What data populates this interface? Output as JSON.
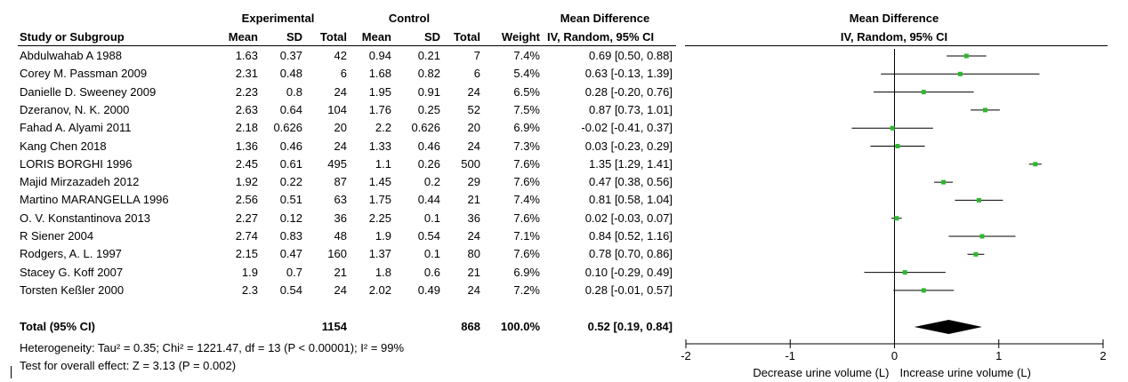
{
  "headers": {
    "experimental": "Experimental",
    "control": "Control",
    "mean_difference": "Mean Difference",
    "study_or_subgroup": "Study or Subgroup",
    "mean": "Mean",
    "sd": "SD",
    "total": "Total",
    "weight": "Weight",
    "ci_method": "IV, Random, 95% CI",
    "plot_title": "Mean Difference",
    "plot_method": "IV, Random, 95% CI"
  },
  "studies": [
    {
      "name": "Abdulwahab A  1988",
      "e_mean": "1.63",
      "e_sd": "0.37",
      "e_total": "42",
      "c_mean": "0.94",
      "c_sd": "0.21",
      "c_total": "7",
      "weight": "7.4%",
      "ci_text": "0.69 [0.50, 0.88]"
    },
    {
      "name": "Corey M. Passman  2009",
      "e_mean": "2.31",
      "e_sd": "0.48",
      "e_total": "6",
      "c_mean": "1.68",
      "c_sd": "0.82",
      "c_total": "6",
      "weight": "5.4%",
      "ci_text": "0.63 [-0.13, 1.39]"
    },
    {
      "name": "Danielle D. Sweeney  2009",
      "e_mean": "2.23",
      "e_sd": "0.8",
      "e_total": "24",
      "c_mean": "1.95",
      "c_sd": "0.91",
      "c_total": "24",
      "weight": "6.5%",
      "ci_text": "0.28 [-0.20, 0.76]"
    },
    {
      "name": "Dzeranov, N. K.  2000",
      "e_mean": "2.63",
      "e_sd": "0.64",
      "e_total": "104",
      "c_mean": "1.76",
      "c_sd": "0.25",
      "c_total": "52",
      "weight": "7.5%",
      "ci_text": "0.87 [0.73, 1.01]"
    },
    {
      "name": "Fahad A. Alyami  2011",
      "e_mean": "2.18",
      "e_sd": "0.626",
      "e_total": "20",
      "c_mean": "2.2",
      "c_sd": "0.626",
      "c_total": "20",
      "weight": "6.9%",
      "ci_text": "-0.02 [-0.41, 0.37]"
    },
    {
      "name": "Kang Chen  2018",
      "e_mean": "1.36",
      "e_sd": "0.46",
      "e_total": "24",
      "c_mean": "1.33",
      "c_sd": "0.46",
      "c_total": "24",
      "weight": "7.3%",
      "ci_text": "0.03 [-0.23, 0.29]"
    },
    {
      "name": "LORIS BORGHI  1996",
      "e_mean": "2.45",
      "e_sd": "0.61",
      "e_total": "495",
      "c_mean": "1.1",
      "c_sd": "0.26",
      "c_total": "500",
      "weight": "7.6%",
      "ci_text": "1.35 [1.29, 1.41]"
    },
    {
      "name": "Majid Mirzazadeh 2012",
      "e_mean": "1.92",
      "e_sd": "0.22",
      "e_total": "87",
      "c_mean": "1.45",
      "c_sd": "0.2",
      "c_total": "29",
      "weight": "7.6%",
      "ci_text": "0.47 [0.38, 0.56]"
    },
    {
      "name": "Martino MARANGELLA  1996",
      "e_mean": "2.56",
      "e_sd": "0.51",
      "e_total": "63",
      "c_mean": "1.75",
      "c_sd": "0.44",
      "c_total": "21",
      "weight": "7.4%",
      "ci_text": "0.81 [0.58, 1.04]"
    },
    {
      "name": "O. V. Konstantinova  2013",
      "e_mean": "2.27",
      "e_sd": "0.12",
      "e_total": "36",
      "c_mean": "2.25",
      "c_sd": "0.1",
      "c_total": "36",
      "weight": "7.6%",
      "ci_text": "0.02 [-0.03, 0.07]"
    },
    {
      "name": "R Siener  2004",
      "e_mean": "2.74",
      "e_sd": "0.83",
      "e_total": "48",
      "c_mean": "1.9",
      "c_sd": "0.54",
      "c_total": "24",
      "weight": "7.1%",
      "ci_text": "0.84 [0.52, 1.16]"
    },
    {
      "name": "Rodgers, A. L.  1997",
      "e_mean": "2.15",
      "e_sd": "0.47",
      "e_total": "160",
      "c_mean": "1.37",
      "c_sd": "0.1",
      "c_total": "80",
      "weight": "7.6%",
      "ci_text": "0.78 [0.70, 0.86]"
    },
    {
      "name": "Stacey G. Koff  2007",
      "e_mean": "1.9",
      "e_sd": "0.7",
      "e_total": "21",
      "c_mean": "1.8",
      "c_sd": "0.6",
      "c_total": "21",
      "weight": "6.9%",
      "ci_text": "0.10 [-0.29, 0.49]"
    },
    {
      "name": "Torsten Keßler  2000",
      "e_mean": "2.3",
      "e_sd": "0.54",
      "e_total": "24",
      "c_mean": "2.02",
      "c_sd": "0.49",
      "c_total": "24",
      "weight": "7.2%",
      "ci_text": "0.28 [-0.01, 0.57]"
    }
  ],
  "total": {
    "label": "Total (95% CI)",
    "e_total": "1154",
    "c_total": "868",
    "weight": "100.0%",
    "ci_text": "0.52 [0.19, 0.84]"
  },
  "footnotes": {
    "heterogeneity": "Heterogeneity: Tau² = 0.35; Chi² = 1221.47, df = 13 (P < 0.00001); I² = 99%",
    "overall_effect": "Test for overall effect: Z = 3.13 (P = 0.002)"
  },
  "chart_data": {
    "type": "forest",
    "title": "Mean Difference",
    "subtitle": "IV, Random, 95% CI",
    "xlim": [
      -2,
      2
    ],
    "ticks": [
      -2,
      -1,
      0,
      1,
      2
    ],
    "tick_labels": [
      "-2",
      "-1",
      "0",
      "1",
      "2"
    ],
    "xlabel_left": "Decrease urine volume (L)",
    "xlabel_right": "Increase urine volume (L)",
    "marker_color": "#2db82d",
    "studies": [
      {
        "md": 0.69,
        "lo": 0.5,
        "hi": 0.88
      },
      {
        "md": 0.63,
        "lo": -0.13,
        "hi": 1.39
      },
      {
        "md": 0.28,
        "lo": -0.2,
        "hi": 0.76
      },
      {
        "md": 0.87,
        "lo": 0.73,
        "hi": 1.01
      },
      {
        "md": -0.02,
        "lo": -0.41,
        "hi": 0.37
      },
      {
        "md": 0.03,
        "lo": -0.23,
        "hi": 0.29
      },
      {
        "md": 1.35,
        "lo": 1.29,
        "hi": 1.41
      },
      {
        "md": 0.47,
        "lo": 0.38,
        "hi": 0.56
      },
      {
        "md": 0.81,
        "lo": 0.58,
        "hi": 1.04
      },
      {
        "md": 0.02,
        "lo": -0.03,
        "hi": 0.07
      },
      {
        "md": 0.84,
        "lo": 0.52,
        "hi": 1.16
      },
      {
        "md": 0.78,
        "lo": 0.7,
        "hi": 0.86
      },
      {
        "md": 0.1,
        "lo": -0.29,
        "hi": 0.49
      },
      {
        "md": 0.28,
        "lo": -0.01,
        "hi": 0.57
      }
    ],
    "pooled": {
      "md": 0.52,
      "lo": 0.19,
      "hi": 0.84
    }
  }
}
